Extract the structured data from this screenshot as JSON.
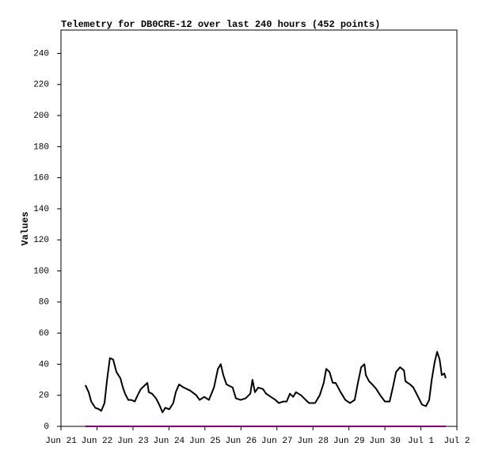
{
  "chart_data": {
    "type": "line",
    "title": "Telemetry for DB0CRE-12 over last 240 hours (452 points)",
    "y_label": "Values",
    "xlim": [
      0,
      11
    ],
    "xticks": [
      {
        "value": 0,
        "label": "Jun 21"
      },
      {
        "value": 1,
        "label": "Jun 22"
      },
      {
        "value": 2,
        "label": "Jun 23"
      },
      {
        "value": 3,
        "label": "Jun 24"
      },
      {
        "value": 4,
        "label": "Jun 25"
      },
      {
        "value": 5,
        "label": "Jun 26"
      },
      {
        "value": 6,
        "label": "Jun 27"
      },
      {
        "value": 7,
        "label": "Jun 28"
      },
      {
        "value": 8,
        "label": "Jun 29"
      },
      {
        "value": 9,
        "label": "Jun 30"
      },
      {
        "value": 10,
        "label": "Jul 1"
      },
      {
        "value": 11,
        "label": "Jul 2"
      }
    ],
    "ylim": [
      0,
      255
    ],
    "yticks": [
      0,
      20,
      40,
      60,
      80,
      100,
      120,
      140,
      160,
      180,
      200,
      220,
      240
    ],
    "grid": false,
    "series": [
      {
        "color": "#000000",
        "x": [
          0.68,
          0.77,
          0.84,
          0.95,
          1.06,
          1.12,
          1.21,
          1.28,
          1.36,
          1.45,
          1.54,
          1.65,
          1.72,
          1.78,
          1.87,
          1.96,
          2.05,
          2.13,
          2.22,
          2.31,
          2.4,
          2.44,
          2.53,
          2.64,
          2.73,
          2.82,
          2.9,
          3.01,
          3.12,
          3.19,
          3.28,
          3.41,
          3.59,
          3.76,
          3.85,
          3.98,
          4.11,
          4.25,
          4.36,
          4.44,
          4.51,
          4.6,
          4.77,
          4.86,
          4.99,
          5.13,
          5.26,
          5.32,
          5.39,
          5.48,
          5.61,
          5.7,
          5.83,
          5.96,
          6.05,
          6.18,
          6.27,
          6.36,
          6.45,
          6.53,
          6.67,
          6.8,
          6.89,
          7.06,
          7.19,
          7.3,
          7.37,
          7.46,
          7.55,
          7.63,
          7.77,
          7.9,
          8.03,
          8.16,
          8.25,
          8.34,
          8.43,
          8.47,
          8.56,
          8.65,
          8.76,
          8.87,
          9.0,
          9.13,
          9.22,
          9.31,
          9.42,
          9.53,
          9.57,
          9.7,
          9.79,
          9.9,
          10.03,
          10.14,
          10.23,
          10.3,
          10.38,
          10.45,
          10.52,
          10.58,
          10.65,
          10.69
        ],
        "values": [
          26.5,
          22,
          16,
          12,
          11,
          10,
          15,
          30,
          44,
          43,
          35,
          31,
          25,
          21,
          17,
          17,
          16,
          20,
          24,
          26,
          28,
          22,
          21,
          18,
          14,
          9,
          12,
          11,
          15,
          22,
          27,
          25,
          23,
          20,
          17,
          19,
          17,
          25,
          37,
          40,
          33,
          27,
          25,
          18,
          17,
          18,
          21,
          30,
          22,
          25,
          24,
          21,
          19,
          17,
          15,
          16,
          16,
          21,
          19,
          22,
          20,
          17,
          15,
          15,
          20,
          28,
          37,
          35,
          28,
          28,
          22,
          17,
          15,
          17,
          28,
          38,
          40,
          33,
          29,
          27,
          24,
          20,
          16,
          16,
          25,
          35,
          38,
          36,
          29,
          27,
          25,
          20,
          14,
          13,
          17,
          30,
          41,
          48,
          43,
          33,
          34,
          31
        ]
      },
      {
        "color": "#800080",
        "x": [
          0.68,
          10.69
        ],
        "values": [
          0,
          0
        ]
      }
    ]
  }
}
